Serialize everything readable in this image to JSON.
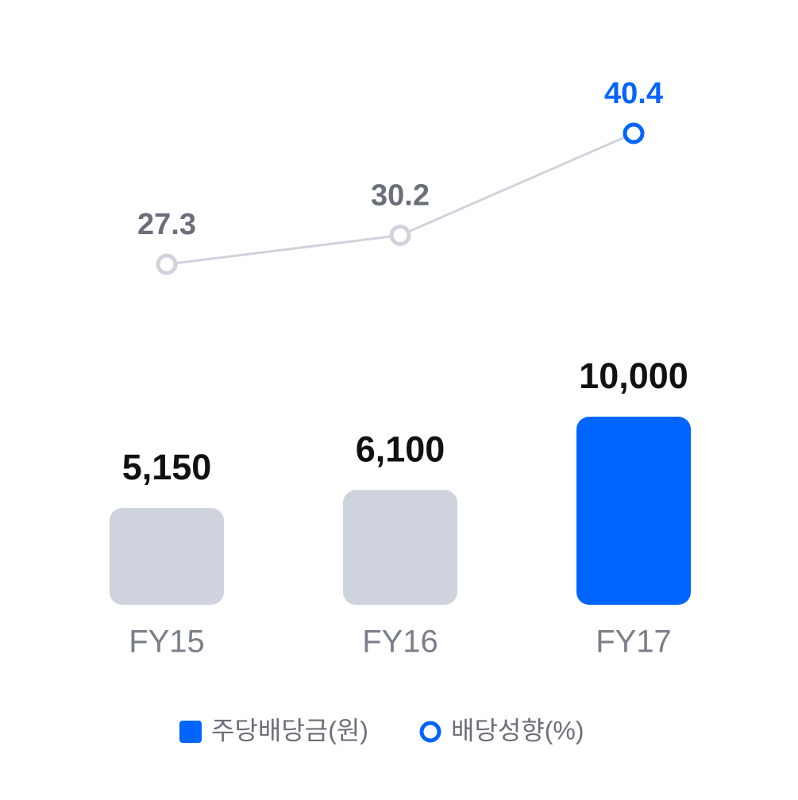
{
  "chart_data": {
    "type": "bar",
    "categories": [
      "FY15",
      "FY16",
      "FY17"
    ],
    "series": [
      {
        "name": "주당배당금(원)",
        "type": "bar",
        "color": "#0064ff",
        "colors": [
          "#cfd3dd",
          "#cfd3dd",
          "#0064ff"
        ],
        "values": [
          5150,
          6100,
          10000
        ],
        "value_labels": [
          "5,150",
          "6,100",
          "10,000"
        ]
      },
      {
        "name": "배당성향(%)",
        "type": "line",
        "color": "#0064ff",
        "line_color": "#d0d3dc",
        "colors": [
          "#d0d3dc",
          "#d0d3dc",
          "#0064ff"
        ],
        "label_colors": [
          "#6b6f7a",
          "#6b6f7a",
          "#0064ff"
        ],
        "values": [
          27.3,
          30.2,
          40.4
        ]
      }
    ]
  }
}
